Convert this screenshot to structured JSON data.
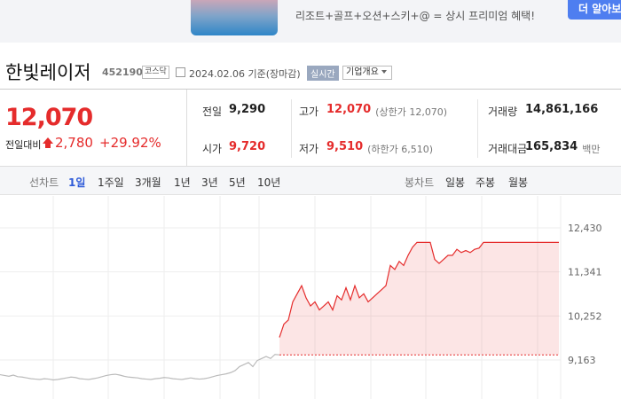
{
  "ad": {
    "text": "리조트+골프+오션+스키+@ = 상시 프리미엄 혜택!",
    "button": "더 알아보"
  },
  "header": {
    "name": "한빛레이저",
    "code": "452190",
    "market": "코스닥",
    "date": "2024.02.06 기준(장마감)",
    "realtime": "실시간",
    "company": "기업개요"
  },
  "quote": {
    "price": "12,070",
    "change_label": "전일대비",
    "change": "2,780",
    "rate": "+29.92%",
    "cells": [
      {
        "label": "전일",
        "value": "9,290",
        "color": "#222"
      },
      {
        "label": "고가",
        "value": "12,070",
        "note": "(상한가 12,070)",
        "color": "#e52c2c"
      },
      {
        "label": "거래량",
        "value": "14,861,166",
        "color": "#222"
      },
      {
        "label": "시가",
        "value": "9,720",
        "color": "#e52c2c"
      },
      {
        "label": "저가",
        "value": "9,510",
        "note": "(하한가 6,510)",
        "color": "#e52c2c"
      },
      {
        "label": "거래대금",
        "value": "165,834",
        "note": "백만",
        "color": "#222"
      }
    ]
  },
  "tabs": {
    "line_label": "선차트",
    "line": [
      "1일",
      "1주일",
      "3개월",
      "1년",
      "3년",
      "5년",
      "10년"
    ],
    "candle_label": "봉차트",
    "candle": [
      "일봉",
      "주봉",
      "월봉"
    ]
  },
  "chart_data": {
    "type": "line",
    "ylim": [
      8198,
      13241
    ],
    "yticks": [
      {
        "value": 12430,
        "label": "12,430"
      },
      {
        "value": 11341,
        "label": "11,341"
      },
      {
        "value": 10252,
        "label": "10,252"
      },
      {
        "value": 9163,
        "label": "9,163"
      }
    ],
    "grid": true,
    "baseline": 9290,
    "series": [
      {
        "color": "#bbbbbb",
        "values": [
          8800,
          8780,
          8760,
          8790,
          8750,
          8740,
          8720,
          8700,
          8690,
          8680,
          8700,
          8690,
          8670,
          8680,
          8700,
          8720,
          8740,
          8730,
          8700,
          8690,
          8680,
          8700,
          8720,
          8750,
          8780,
          8800,
          8810,
          8790,
          8760,
          8740,
          8730,
          8720,
          8700,
          8690,
          8680,
          8700,
          8710,
          8730,
          8720,
          8700,
          8690,
          8680,
          8700,
          8720,
          8700,
          8690,
          8700,
          8720,
          8750,
          8780,
          8800,
          8820,
          8850,
          8900,
          9000,
          9050,
          9100,
          9000,
          9150,
          9200,
          9250,
          9200,
          9300,
          9290,
          null,
          null,
          null,
          null,
          null,
          null,
          null,
          null,
          null,
          null,
          null,
          null,
          null,
          null,
          null,
          null,
          null,
          null,
          null,
          null,
          null,
          null,
          null,
          null,
          null,
          null,
          null,
          null,
          null,
          null,
          null,
          null,
          null,
          null,
          null,
          null,
          null,
          null,
          null,
          null,
          null,
          null,
          null,
          null,
          null,
          null,
          null,
          null,
          null,
          null,
          null,
          null,
          null,
          null,
          null,
          null,
          null,
          null,
          null,
          null,
          null,
          null,
          null
        ]
      },
      {
        "color": "#e52c2c",
        "fill": true,
        "values": [
          null,
          null,
          null,
          null,
          null,
          null,
          null,
          null,
          null,
          null,
          null,
          null,
          null,
          null,
          null,
          null,
          null,
          null,
          null,
          null,
          null,
          null,
          null,
          null,
          null,
          null,
          null,
          null,
          null,
          null,
          null,
          null,
          null,
          null,
          null,
          null,
          null,
          null,
          null,
          null,
          null,
          null,
          null,
          null,
          null,
          null,
          null,
          null,
          null,
          null,
          null,
          null,
          null,
          null,
          null,
          null,
          null,
          null,
          null,
          null,
          null,
          null,
          null,
          9720,
          10050,
          10150,
          10600,
          10800,
          11000,
          10700,
          10500,
          10600,
          10400,
          10500,
          10600,
          10400,
          10750,
          10650,
          10950,
          10650,
          11000,
          10700,
          10800,
          10600,
          10700,
          10800,
          10900,
          11000,
          11500,
          11400,
          11600,
          11500,
          11750,
          11950,
          12070,
          12070,
          12070,
          12070,
          11650,
          11550,
          11650,
          11750,
          11750,
          11900,
          11820,
          11870,
          11820,
          11900,
          11930,
          12070,
          12070,
          12070,
          12070,
          12070,
          12070,
          12070,
          12070,
          12070,
          12070,
          12070,
          12070,
          12070,
          12070,
          12070,
          12070,
          12070,
          12070
        ]
      }
    ]
  }
}
